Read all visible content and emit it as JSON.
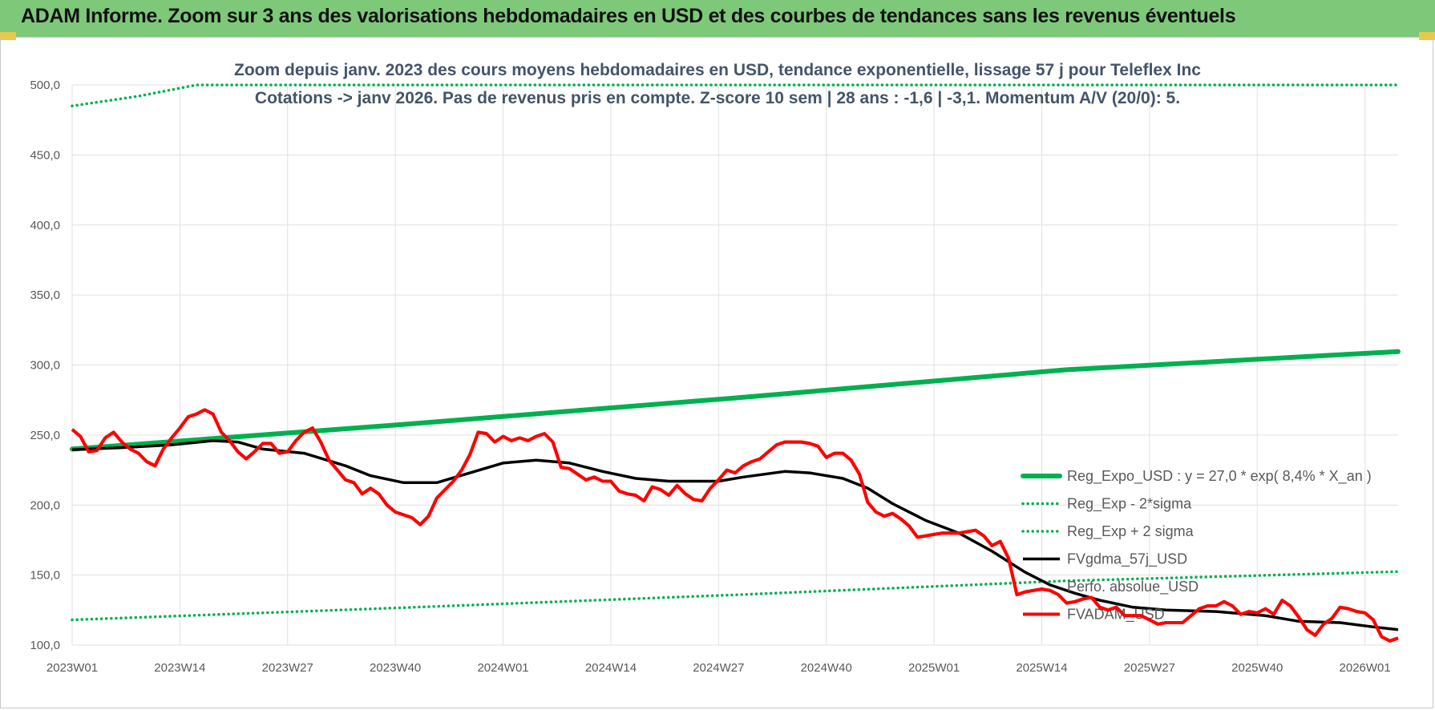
{
  "page": {
    "banner_title": "ADAM Informe. Zoom sur 3 ans des valorisations hebdomadaires en USD et des courbes de tendances sans les revenus éventuels",
    "banner_color": "#7ec87a"
  },
  "chart_data": {
    "type": "line",
    "title": "",
    "subtitle_lines": [
      "Zoom depuis janv. 2023 des cours moyens hebdomadaires en USD, tendance exponentielle, lissage 57 j pour Teleflex Inc",
      "Cotations -> janv 2026. Pas de revenus pris en compte. Z-score 10 sem | 28 ans : -1,6 | -3,1. Momentum A/V (20/0): 5."
    ],
    "xlabel": "",
    "ylabel": "",
    "ylim": [
      100,
      500
    ],
    "y_ticks": [
      "100,0",
      "150,0",
      "200,0",
      "250,0",
      "300,0",
      "350,0",
      "400,0",
      "450,0",
      "500,0"
    ],
    "x_range_weeks": [
      0,
      160
    ],
    "x_ticks": [
      {
        "week": 0,
        "label": "2023W01"
      },
      {
        "week": 13,
        "label": "2023W14"
      },
      {
        "week": 26,
        "label": "2023W27"
      },
      {
        "week": 39,
        "label": "2023W40"
      },
      {
        "week": 52,
        "label": "2024W01"
      },
      {
        "week": 65,
        "label": "2024W14"
      },
      {
        "week": 78,
        "label": "2024W27"
      },
      {
        "week": 91,
        "label": "2024W40"
      },
      {
        "week": 104,
        "label": "2025W01"
      },
      {
        "week": 117,
        "label": "2025W14"
      },
      {
        "week": 130,
        "label": "2025W27"
      },
      {
        "week": 143,
        "label": "2025W40"
      },
      {
        "week": 156,
        "label": "2026W01"
      }
    ],
    "grid": true,
    "legend_position": "bottom-right",
    "series": [
      {
        "name": "Reg_Expo_USD : y = 27,0 * exp( 8,4% *  X_an )",
        "color": "#00b050",
        "style": "thick",
        "points": [
          [
            0,
            240
          ],
          [
            40,
            257.6
          ],
          [
            80,
            276.5
          ],
          [
            120,
            296.6
          ],
          [
            160,
            309.6
          ]
        ]
      },
      {
        "name": "Reg_Exp - 2*sigma",
        "color": "#00b050",
        "style": "dotted",
        "points": [
          [
            0,
            118
          ],
          [
            40,
            126.7
          ],
          [
            80,
            135.9
          ],
          [
            120,
            145.9
          ],
          [
            160,
            152.5
          ]
        ]
      },
      {
        "name": "Reg_Exp + 2 sigma",
        "color": "#00b050",
        "style": "dotted",
        "points": [
          [
            0,
            485
          ],
          [
            8,
            492
          ],
          [
            15,
            500
          ],
          [
            160,
            500
          ]
        ]
      },
      {
        "name": "FVgdma_57j_USD",
        "color": "#000000",
        "style": "solid",
        "points": [
          [
            0,
            239.5
          ],
          [
            6,
            241
          ],
          [
            12,
            243
          ],
          [
            17,
            246
          ],
          [
            20,
            245
          ],
          [
            23,
            240
          ],
          [
            28,
            237
          ],
          [
            33,
            228
          ],
          [
            36,
            221
          ],
          [
            40,
            216
          ],
          [
            44,
            216
          ],
          [
            48,
            223
          ],
          [
            52,
            230
          ],
          [
            56,
            232
          ],
          [
            60,
            230
          ],
          [
            64,
            224
          ],
          [
            68,
            219
          ],
          [
            72,
            217
          ],
          [
            78,
            217
          ],
          [
            81,
            220
          ],
          [
            86,
            224
          ],
          [
            89,
            223
          ],
          [
            93,
            219
          ],
          [
            96,
            212
          ],
          [
            99,
            201
          ],
          [
            103,
            189
          ],
          [
            107,
            180
          ],
          [
            111,
            167
          ],
          [
            115,
            152
          ],
          [
            118,
            143
          ],
          [
            121,
            137
          ],
          [
            124,
            132
          ],
          [
            128,
            127
          ],
          [
            132,
            125
          ],
          [
            138,
            124
          ],
          [
            144,
            121
          ],
          [
            148,
            117
          ],
          [
            153,
            116
          ],
          [
            157,
            113
          ],
          [
            160,
            111
          ]
        ]
      },
      {
        "name": "Perfo. absolue_USD",
        "color": "#7f7f7f",
        "style": "none",
        "points": []
      },
      {
        "name": "FVADAM_USD",
        "color": "#ff0000",
        "style": "solid",
        "points": [
          [
            0,
            254
          ],
          [
            1,
            249
          ],
          [
            2,
            238
          ],
          [
            3,
            239
          ],
          [
            4,
            248
          ],
          [
            5,
            252
          ],
          [
            6,
            245
          ],
          [
            7,
            240
          ],
          [
            8,
            237
          ],
          [
            9,
            231
          ],
          [
            10,
            228
          ],
          [
            11,
            240
          ],
          [
            12,
            248
          ],
          [
            13,
            255
          ],
          [
            14,
            263
          ],
          [
            15,
            265
          ],
          [
            16,
            268
          ],
          [
            17,
            265
          ],
          [
            18,
            252
          ],
          [
            19,
            246
          ],
          [
            20,
            238
          ],
          [
            21,
            233
          ],
          [
            22,
            238
          ],
          [
            23,
            244
          ],
          [
            24,
            244
          ],
          [
            25,
            237
          ],
          [
            26,
            238
          ],
          [
            27,
            246
          ],
          [
            28,
            252
          ],
          [
            29,
            255
          ],
          [
            30,
            245
          ],
          [
            31,
            232
          ],
          [
            32,
            225
          ],
          [
            33,
            218
          ],
          [
            34,
            216
          ],
          [
            35,
            208
          ],
          [
            36,
            212
          ],
          [
            37,
            208
          ],
          [
            38,
            200
          ],
          [
            39,
            195
          ],
          [
            40,
            193
          ],
          [
            41,
            191
          ],
          [
            42,
            186
          ],
          [
            43,
            192
          ],
          [
            44,
            205
          ],
          [
            45,
            211
          ],
          [
            46,
            217
          ],
          [
            47,
            225
          ],
          [
            48,
            236
          ],
          [
            49,
            252
          ],
          [
            50,
            251
          ],
          [
            51,
            245
          ],
          [
            52,
            249
          ],
          [
            53,
            246
          ],
          [
            54,
            248
          ],
          [
            55,
            246
          ],
          [
            56,
            249
          ],
          [
            57,
            251
          ],
          [
            58,
            245
          ],
          [
            59,
            227
          ],
          [
            60,
            226
          ],
          [
            61,
            222
          ],
          [
            62,
            218
          ],
          [
            63,
            220
          ],
          [
            64,
            217
          ],
          [
            65,
            217
          ],
          [
            66,
            210
          ],
          [
            67,
            208
          ],
          [
            68,
            207
          ],
          [
            69,
            203
          ],
          [
            70,
            213
          ],
          [
            71,
            211
          ],
          [
            72,
            207
          ],
          [
            73,
            214
          ],
          [
            74,
            208
          ],
          [
            75,
            204
          ],
          [
            76,
            203
          ],
          [
            77,
            212
          ],
          [
            78,
            218
          ],
          [
            79,
            225
          ],
          [
            80,
            223
          ],
          [
            81,
            228
          ],
          [
            82,
            231
          ],
          [
            83,
            233
          ],
          [
            84,
            238
          ],
          [
            85,
            243
          ],
          [
            86,
            245
          ],
          [
            87,
            245
          ],
          [
            88,
            245
          ],
          [
            89,
            244
          ],
          [
            90,
            242
          ],
          [
            91,
            234
          ],
          [
            92,
            237
          ],
          [
            93,
            237
          ],
          [
            94,
            232
          ],
          [
            95,
            222
          ],
          [
            96,
            202
          ],
          [
            97,
            195
          ],
          [
            98,
            192
          ],
          [
            99,
            194
          ],
          [
            100,
            190
          ],
          [
            101,
            185
          ],
          [
            102,
            177
          ],
          [
            103,
            178
          ],
          [
            104,
            179
          ],
          [
            105,
            180
          ],
          [
            106,
            180
          ],
          [
            107,
            180
          ],
          [
            108,
            181
          ],
          [
            109,
            182
          ],
          [
            110,
            178
          ],
          [
            111,
            171
          ],
          [
            112,
            174
          ],
          [
            113,
            162
          ],
          [
            114,
            136
          ],
          [
            115,
            138
          ],
          [
            116,
            139
          ],
          [
            117,
            140
          ],
          [
            118,
            139
          ],
          [
            119,
            136
          ],
          [
            120,
            130
          ],
          [
            121,
            131
          ],
          [
            122,
            133
          ],
          [
            123,
            134
          ],
          [
            124,
            127
          ],
          [
            125,
            125
          ],
          [
            126,
            127
          ],
          [
            127,
            121
          ],
          [
            128,
            121
          ],
          [
            129,
            121
          ],
          [
            130,
            118
          ],
          [
            131,
            115
          ],
          [
            132,
            116
          ],
          [
            133,
            116
          ],
          [
            134,
            116
          ],
          [
            135,
            121
          ],
          [
            136,
            126
          ],
          [
            137,
            128
          ],
          [
            138,
            128
          ],
          [
            139,
            131
          ],
          [
            140,
            128
          ],
          [
            141,
            122
          ],
          [
            142,
            124
          ],
          [
            143,
            123
          ],
          [
            144,
            126
          ],
          [
            145,
            122
          ],
          [
            146,
            132
          ],
          [
            147,
            128
          ],
          [
            148,
            120
          ],
          [
            149,
            111
          ],
          [
            150,
            107
          ],
          [
            151,
            115
          ],
          [
            152,
            119
          ],
          [
            153,
            127
          ],
          [
            154,
            126
          ],
          [
            155,
            124
          ],
          [
            156,
            123
          ],
          [
            157,
            118
          ],
          [
            158,
            106
          ],
          [
            159,
            103
          ],
          [
            160,
            105
          ]
        ]
      }
    ]
  }
}
